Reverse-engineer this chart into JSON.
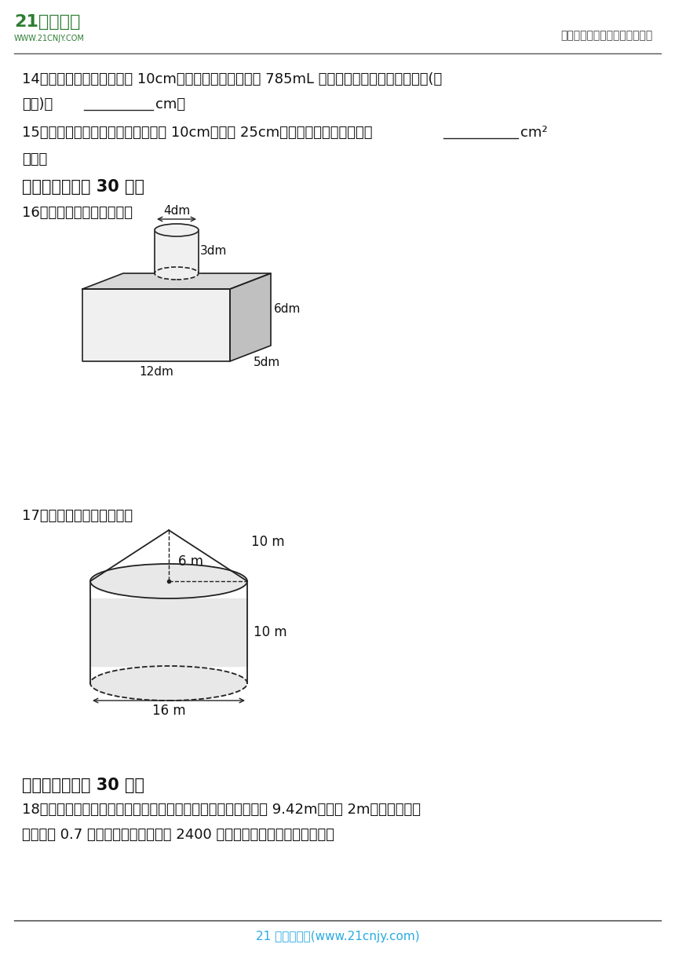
{
  "bg_color": "#ffffff",
  "logo_green": "#2e7d32",
  "header_right": "中小学教育资源及组卷应用平台",
  "footer_text": "21 世纪教育网(www.21cnjy.com)",
  "q14_line1": "14．一个圆柱形水杯的高是 10cm，若这个水杯最多能装 785mL 的水，则这个水杯的底面半径(内",
  "q14_line2_pre": "部量)是",
  "q14_line2_post": "cm。",
  "q15_line1_pre": "15．一个圆柱形茶叶桶的底面直径是 10cm，高是 25cm，做这个茶叶桶至少要用",
  "q15_line1_post": "cm²",
  "q15_line2": "纸板。",
  "section4": "四、计算题（共 30 分）",
  "q16": "16．计算下面图形的体积。",
  "q17": "17．计算下面图形的体积。",
  "section5": "五、解答题（共 30 分）",
  "q18_line1": "18．张伯伯家有一堆小麦，堆成了圆锥形，量得它的底面周长是 9.42m，高是 2m。如果每立方",
  "q18_line2": "米小麦重 0.7 吨，每吨小麦的售价为 2400 元，那么这堆小麦能卖多少钱？",
  "edge_color": "#222222",
  "fill_light": "#f0f0f0",
  "fill_mid": "#d8d8d8",
  "fill_dark": "#c0c0c0"
}
